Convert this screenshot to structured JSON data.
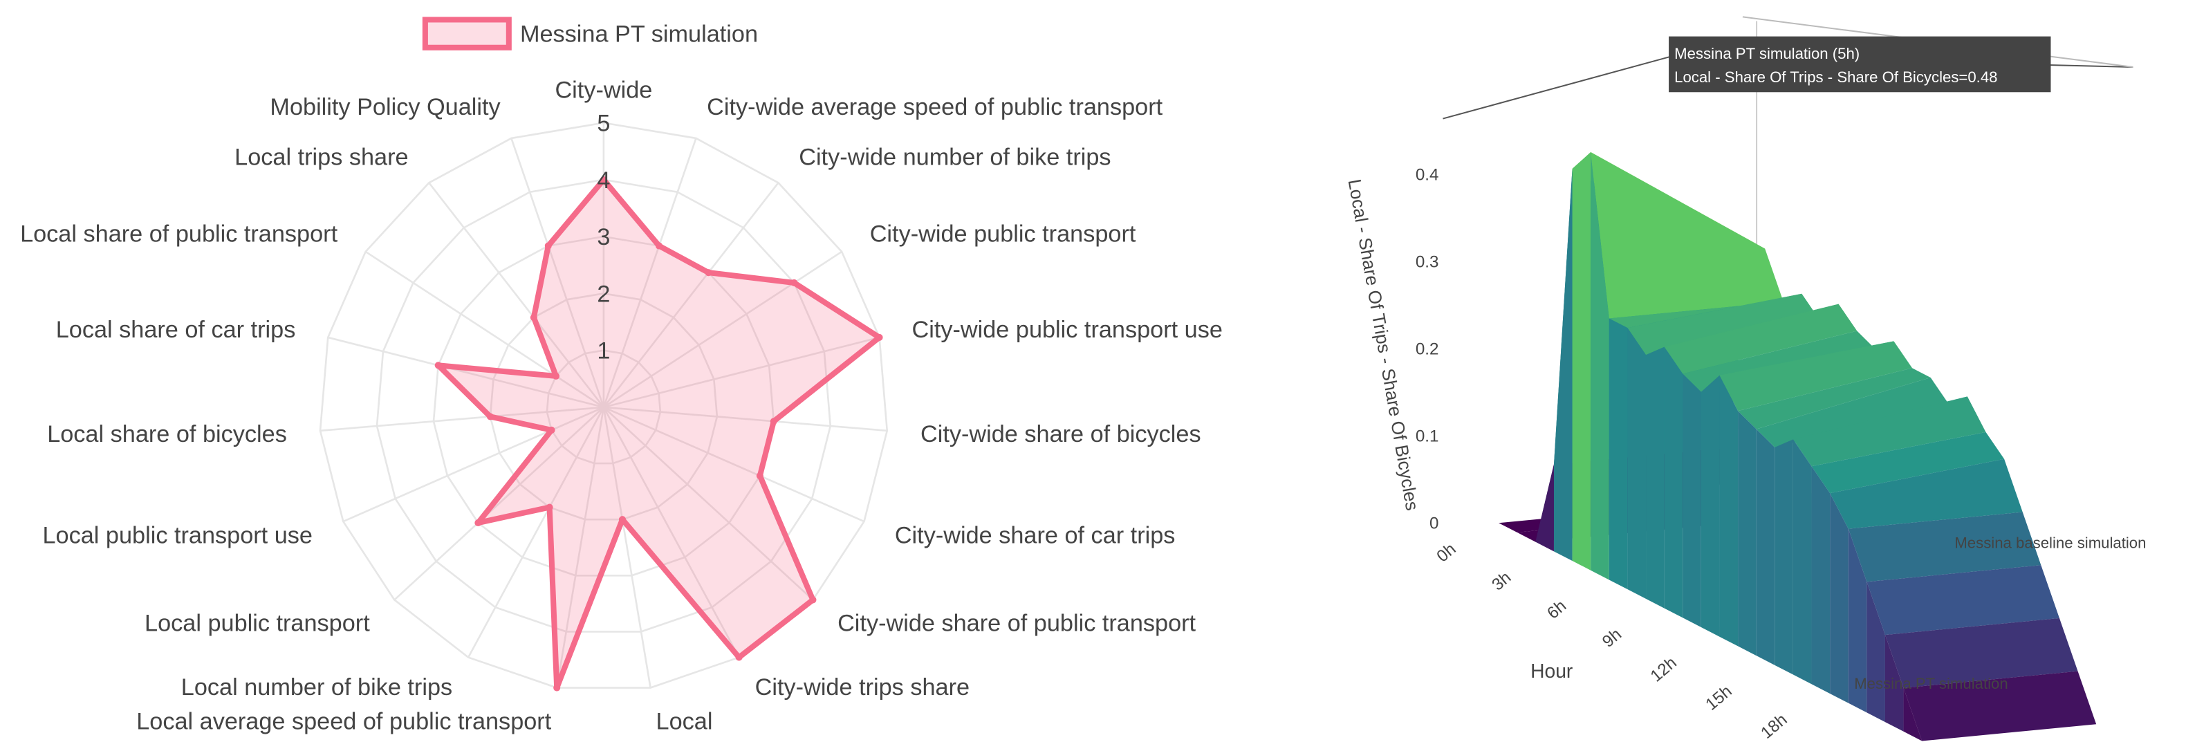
{
  "chart_data": [
    {
      "type": "radar",
      "categories": [
        "City-wide",
        "City-wide average speed of public transport",
        "City-wide number of bike trips",
        "City-wide public transport",
        "City-wide public transport use",
        "City-wide share of bicycles",
        "City-wide share of car trips",
        "City-wide share of public transport",
        "City-wide trips share",
        "Local",
        "Local average speed of public transport",
        "Local number of bike trips",
        "Local public transport",
        "Local public transport use",
        "Local share of bicycles",
        "Local share of car trips",
        "Local share of public transport",
        "Local trips share",
        "Mobility Policy Quality"
      ],
      "series": [
        {
          "name": "Messina PT simulation",
          "color": "#f56b8a",
          "values": [
            4,
            3,
            3,
            4,
            5,
            3,
            3,
            5,
            5,
            2,
            5,
            2,
            3,
            1,
            2,
            3,
            1,
            2,
            3
          ]
        }
      ],
      "ylim": [
        0,
        5
      ],
      "yticks": [
        1,
        2,
        3,
        4,
        5
      ],
      "grid": true,
      "legend": "top"
    },
    {
      "type": "surface",
      "x": [
        0,
        1,
        2,
        3,
        4,
        5,
        6,
        7,
        8,
        9,
        10,
        11,
        12,
        13,
        14,
        15,
        16,
        17,
        18,
        19,
        20,
        21,
        22,
        23
      ],
      "xlabel": "Hour",
      "xticks": [
        {
          "value": 0,
          "label": "0h"
        },
        {
          "value": 3,
          "label": "3h"
        },
        {
          "value": 6,
          "label": "6h"
        },
        {
          "value": 9,
          "label": "9h"
        },
        {
          "value": 12,
          "label": "12h"
        },
        {
          "value": 15,
          "label": "15h"
        },
        {
          "value": 18,
          "label": "18h"
        }
      ],
      "zlabel": "Local - Share Of Trips - Share Of Bicycles",
      "zlim": [
        0,
        0.48
      ],
      "zticks": [
        0,
        0.1,
        0.2,
        0.3,
        0.4
      ],
      "series": [
        {
          "name": "Messina PT simulation",
          "values": [
            0,
            0,
            0,
            0.1,
            0.45,
            0.48,
            0.3,
            0.3,
            0.28,
            0.3,
            0.28,
            0.27,
            0.3,
            0.27,
            0.26,
            0.25,
            0.27,
            0.25,
            0.23,
            0.2,
            0.15,
            0.1,
            0.05,
            0
          ]
        },
        {
          "name": "Messina baseline simulation",
          "values": [
            0,
            0,
            0,
            0.1,
            0.3,
            0.35,
            0.3,
            0.32,
            0.3,
            0.33,
            0.31,
            0.3,
            0.32,
            0.3,
            0.3,
            0.28,
            0.3,
            0.27,
            0.25,
            0.2,
            0.15,
            0.1,
            0.05,
            0
          ]
        }
      ],
      "tooltip": {
        "title": "Messina PT simulation (5h)",
        "text": "Local - Share Of Trips - Share Of Bicycles=0.48"
      }
    }
  ]
}
